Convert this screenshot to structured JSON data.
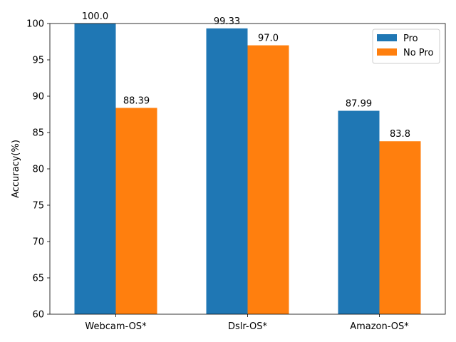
{
  "chart_data": {
    "type": "bar",
    "title": "",
    "xlabel": "",
    "ylabel": "Accuracy(%)",
    "categories": [
      "Webcam-OS*",
      "Dslr-OS*",
      "Amazon-OS*"
    ],
    "series": [
      {
        "name": "Pro",
        "color": "#1f77b4",
        "values": [
          100.0,
          99.33,
          87.99
        ],
        "labels": [
          "100.0",
          "99.33",
          "87.99"
        ]
      },
      {
        "name": "No Pro",
        "color": "#ff7f0e",
        "values": [
          88.39,
          97.0,
          83.8
        ],
        "labels": [
          "88.39",
          "97.0",
          "83.8"
        ]
      }
    ],
    "ylim": [
      60,
      100
    ],
    "yticks": [
      60,
      65,
      70,
      75,
      80,
      85,
      90,
      95,
      100
    ],
    "grid": false,
    "legend_position": "top-right"
  }
}
